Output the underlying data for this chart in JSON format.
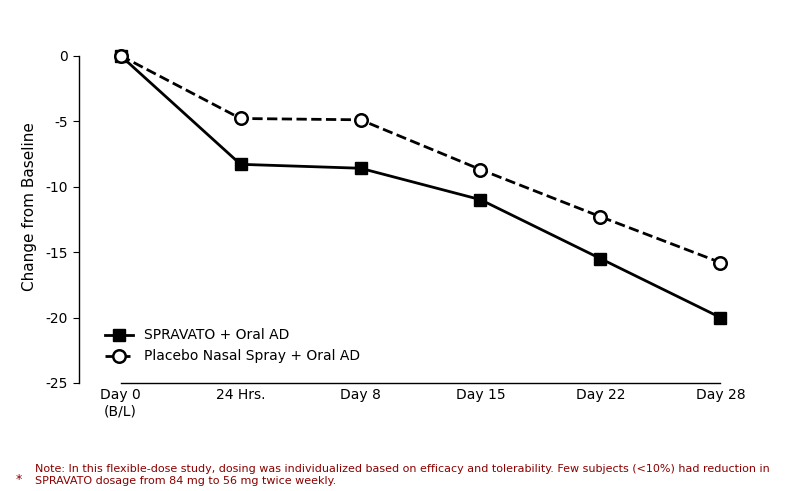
{
  "x_positions": [
    0,
    1,
    2,
    3,
    4,
    5
  ],
  "x_labels": [
    "Day 0\n(B/L)",
    "24 Hrs.",
    "Day 8",
    "Day 15",
    "Day 22",
    "Day 28"
  ],
  "spravato_y": [
    0,
    -8.3,
    -8.6,
    -11.0,
    -15.5,
    -20.0
  ],
  "placebo_y": [
    0,
    -4.8,
    -4.9,
    -8.7,
    -12.3,
    -15.8
  ],
  "ylim": [
    -25,
    2
  ],
  "yticks": [
    0,
    -5,
    -10,
    -15,
    -20,
    -25
  ],
  "ylabel": "Change from Baseline",
  "line_color": "#000000",
  "legend_spravato": "SPRAVATO + Oral AD",
  "legend_placebo": "Placebo Nasal Spray + Oral AD",
  "footnote_star": "*",
  "footnote_text": "Note: In this flexible-dose study, dosing was individualized based on efficacy and tolerability. Few subjects (<10%) had reduction in\nSPRAVATO dosage from 84 mg to 56 mg twice weekly.",
  "footnote_color": "#8B0000",
  "marker_size_square": 8,
  "marker_size_circle": 9,
  "linewidth": 2.0
}
